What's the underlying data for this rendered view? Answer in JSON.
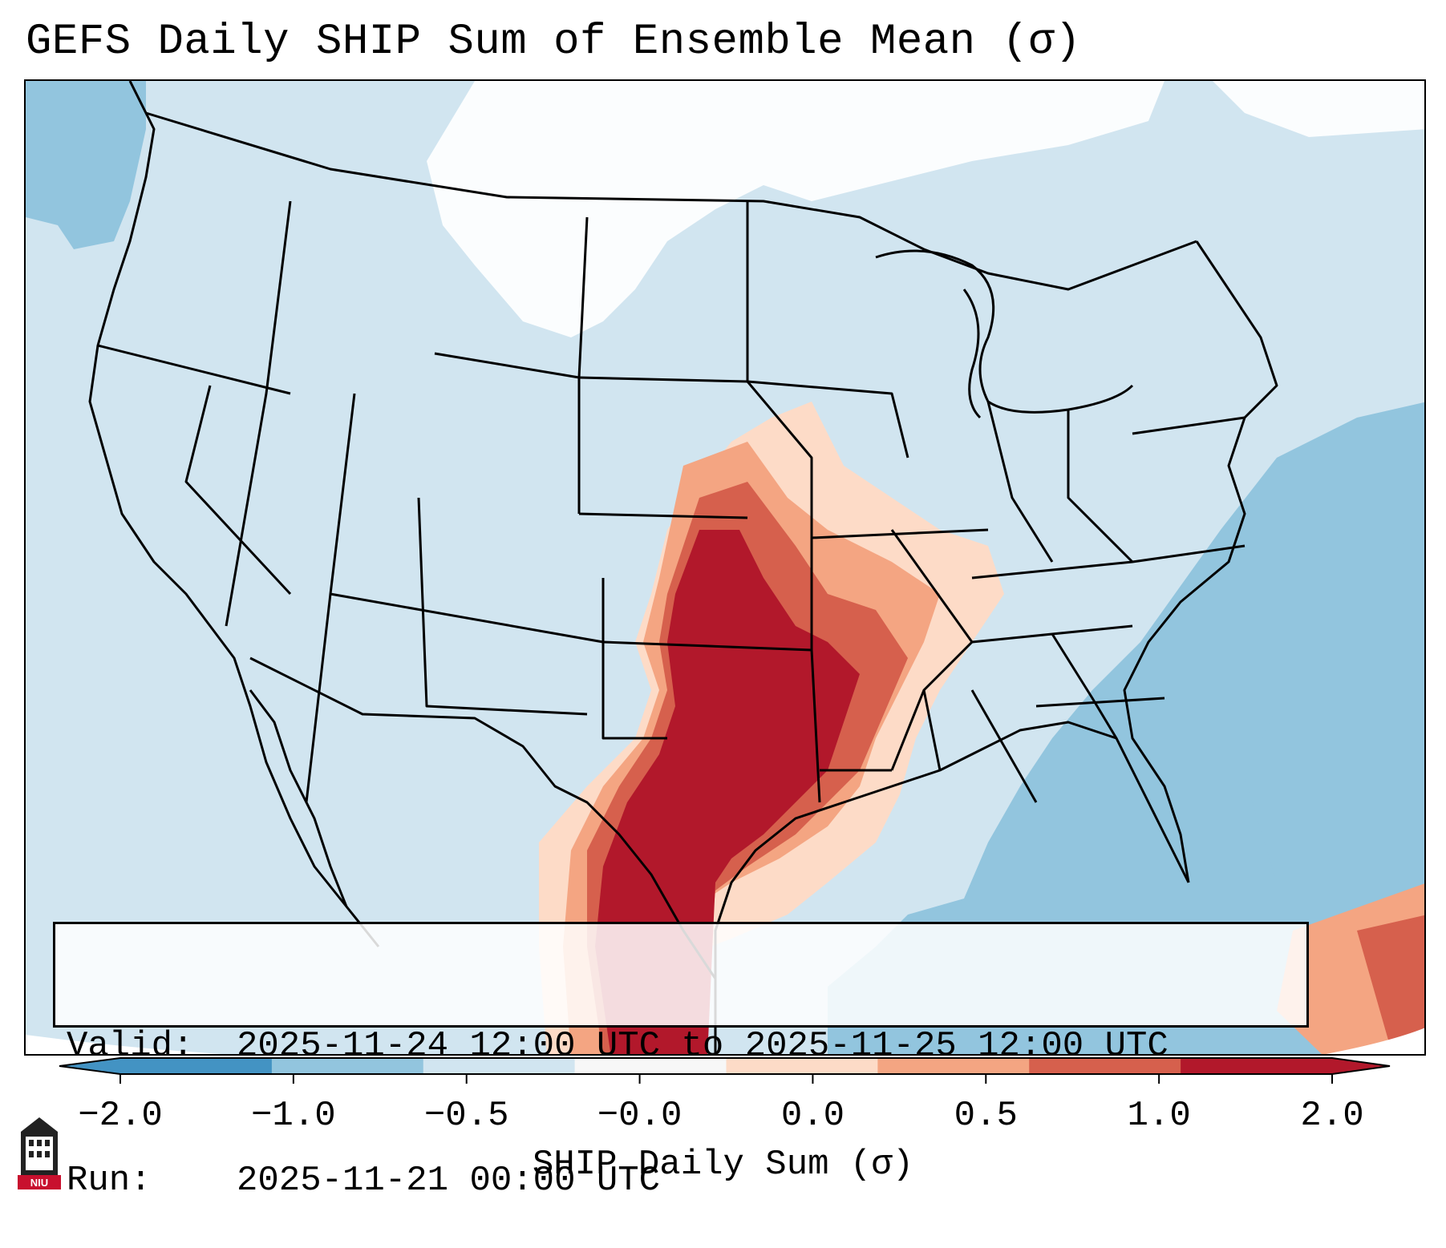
{
  "title": "GEFS Daily SHIP Sum of Ensemble Mean (σ)",
  "info": {
    "valid_key": "Valid:",
    "valid_value": "2025-11-24 12:00 UTC to 2025-11-25 12:00 UTC",
    "run_key": "Run:",
    "run_value": "2025-11-21 00:00 UTC"
  },
  "colorbar": {
    "label": "SHIP Daily Sum (σ)",
    "ticks": [
      "−2.0",
      "−1.0",
      "−0.5",
      "−0.0",
      "0.0",
      "0.5",
      "1.0",
      "2.0"
    ],
    "colors": [
      "#4393c3",
      "#92c5de",
      "#d1e5f0",
      "#f7f7f7",
      "#fddbc7",
      "#f4a582",
      "#d6604d",
      "#b2182b"
    ],
    "extend": "both"
  },
  "map_colors": {
    "ocean_deep": "#92c5de",
    "land_light": "#d1e5f0",
    "neutral": "#ffffff",
    "warm1": "#fddbc7",
    "warm2": "#f4a582",
    "warm3": "#d6604d",
    "warm4": "#b2182b",
    "border": "#000000"
  },
  "logo": {
    "text": "NIU",
    "icon": "university-tower-icon"
  }
}
